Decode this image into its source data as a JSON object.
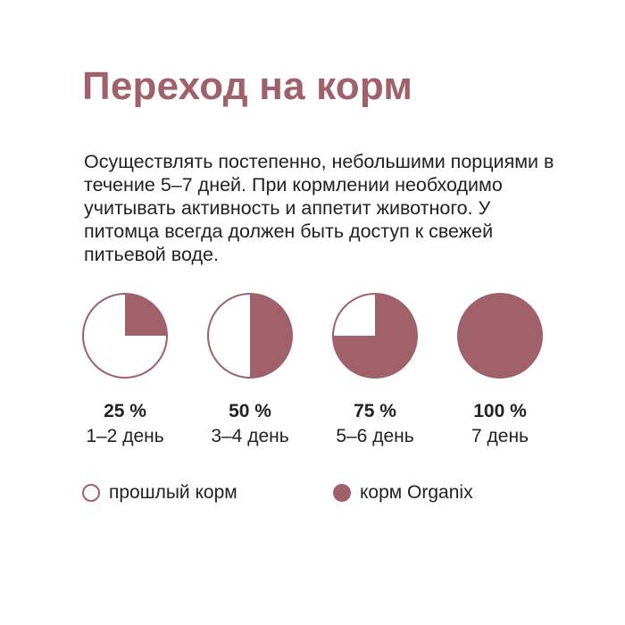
{
  "title": "Переход на корм",
  "description": "Осуществлять постепенно, небольшими порциями в течение 5–7 дней. При кормлении необходимо учитывать активность и аппетит животного. У питомца всегда должен быть доступ к свежей питьевой воде.",
  "colors": {
    "accent": "#a0616a",
    "text": "#222222"
  },
  "stages": [
    {
      "fraction": 0.25,
      "percent_label": "25 %",
      "days_label": "1–2 день"
    },
    {
      "fraction": 0.5,
      "percent_label": "50 %",
      "days_label": "3–4 день"
    },
    {
      "fraction": 0.75,
      "percent_label": "75 %",
      "days_label": "5–6 день"
    },
    {
      "fraction": 1.0,
      "percent_label": "100 %",
      "days_label": "7 день"
    }
  ],
  "legend": {
    "old_food": "прошлый корм",
    "new_food": "корм Organix"
  }
}
